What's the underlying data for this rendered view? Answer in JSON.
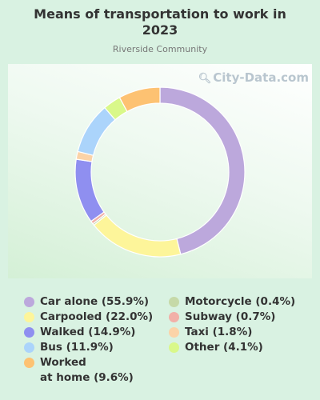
{
  "title_line1": "Means of transportation to work in",
  "title_line2": "2023",
  "subtitle": "Riverside Community",
  "watermark": "City-Data.com",
  "chart_data": {
    "type": "pie",
    "title": "Means of transportation to work in 2023",
    "subtitle": "Riverside Community",
    "legend_placement": "bottom",
    "slices": [
      {
        "label": "Car alone",
        "value": 55.9,
        "legend": "Car alone (55.9%)",
        "color": "#bca8dc"
      },
      {
        "label": "Carpooled",
        "value": 22.0,
        "legend": "Carpooled (22.0%)",
        "color": "#fdf59a"
      },
      {
        "label": "Motorcycle",
        "value": 0.4,
        "legend": "Motorcycle (0.4%)",
        "color": "#c6d9a8"
      },
      {
        "label": "Subway",
        "value": 0.7,
        "legend": "Subway (0.7%)",
        "color": "#f2b0a8"
      },
      {
        "label": "Walked",
        "value": 14.9,
        "legend": "Walked (14.9%)",
        "color": "#8f8ff0"
      },
      {
        "label": "Taxi",
        "value": 1.8,
        "legend": "Taxi (1.8%)",
        "color": "#fbd3a8"
      },
      {
        "label": "Bus",
        "value": 11.9,
        "legend": "Bus (11.9%)",
        "color": "#abd4fb"
      },
      {
        "label": "Other",
        "value": 4.1,
        "legend": "Other (4.1%)",
        "color": "#d9f88a"
      },
      {
        "label": "Worked at home",
        "value": 9.6,
        "legend": "Worked at home (9.6%)",
        "legend_line1": "Worked",
        "legend_line2": "at home (9.6%)",
        "color": "#fdc272"
      }
    ]
  }
}
